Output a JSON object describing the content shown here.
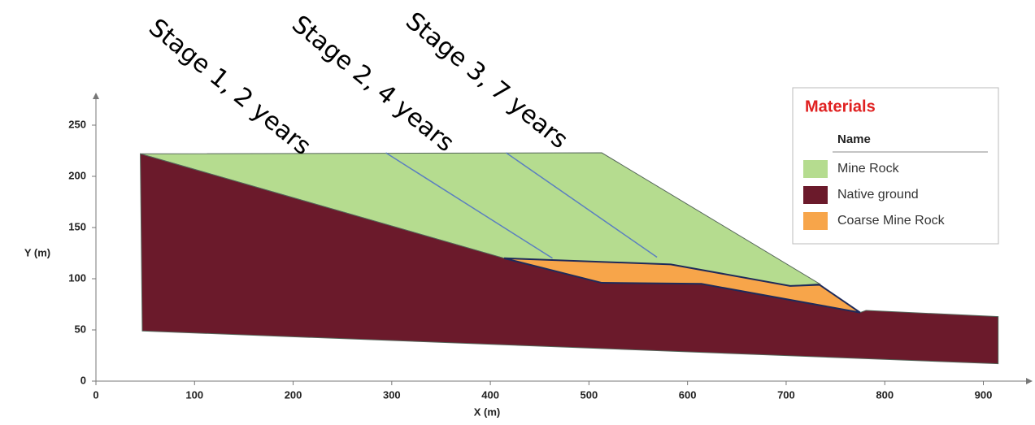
{
  "chart_data": {
    "type": "polygon",
    "x_label": "X (m)",
    "y_label": "Y (m)",
    "xlim": [
      0,
      940
    ],
    "ylim": [
      0,
      275
    ],
    "xticks": [
      0,
      100,
      200,
      300,
      400,
      500,
      600,
      700,
      800,
      900
    ],
    "yticks": [
      0,
      50,
      100,
      150,
      200,
      250
    ],
    "legend_title": "Materials",
    "legend_header": "Name",
    "series": [
      {
        "name": "Mine Rock",
        "color": "#b5dc8f",
        "x": [
          45,
          513,
          734,
          704,
          583,
          414
        ],
        "y": [
          222,
          223,
          95,
          93,
          114,
          120
        ]
      },
      {
        "name": "Native ground",
        "color": "#6b1a2b",
        "x": [
          45,
          414,
          513,
          614,
          775,
          781,
          915,
          915,
          47
        ],
        "y": [
          222,
          120,
          96,
          95,
          67,
          69,
          63,
          17,
          49
        ]
      },
      {
        "name": "Coarse Mine Rock",
        "color": "#f7a54a",
        "x": [
          414,
          583,
          704,
          734,
          775,
          614,
          513
        ],
        "y": [
          120,
          114,
          93,
          94,
          67,
          95,
          96
        ]
      }
    ],
    "stage_lines": [
      {
        "color": "#5b7fc0",
        "x": [
          294,
          463
        ],
        "y": [
          223,
          120
        ]
      },
      {
        "color": "#5b7fc0",
        "x": [
          416,
          569
        ],
        "y": [
          223,
          121
        ]
      }
    ],
    "annotations": [
      "Stage 1, 2 years",
      "Stage 2, 4 years",
      "Stage 3, 7 years"
    ]
  }
}
